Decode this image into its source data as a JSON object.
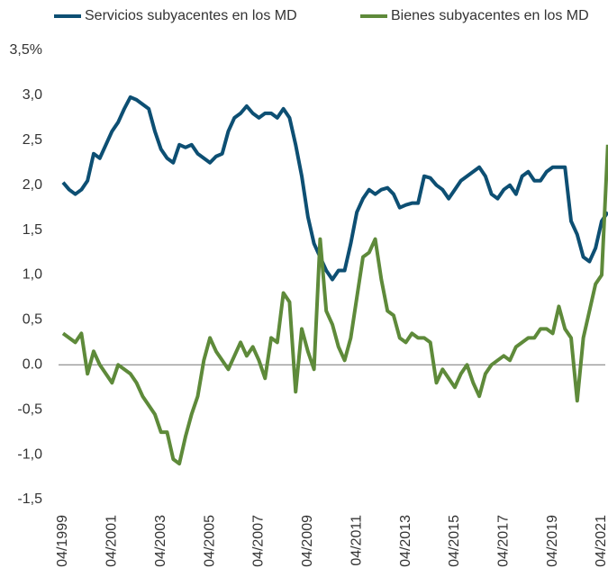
{
  "chart_data": {
    "type": "line",
    "x": [
      "04/1999",
      "07/1999",
      "10/1999",
      "01/2000",
      "04/2000",
      "07/2000",
      "10/2000",
      "01/2001",
      "04/2001",
      "07/2001",
      "10/2001",
      "01/2002",
      "04/2002",
      "07/2002",
      "10/2002",
      "01/2003",
      "04/2003",
      "07/2003",
      "10/2003",
      "01/2004",
      "04/2004",
      "07/2004",
      "10/2004",
      "01/2005",
      "04/2005",
      "07/2005",
      "10/2005",
      "01/2006",
      "04/2006",
      "07/2006",
      "10/2006",
      "01/2007",
      "04/2007",
      "07/2007",
      "10/2007",
      "01/2008",
      "04/2008",
      "07/2008",
      "10/2008",
      "01/2009",
      "04/2009",
      "07/2009",
      "10/2009",
      "01/2010",
      "04/2010",
      "07/2010",
      "10/2010",
      "01/2011",
      "04/2011",
      "07/2011",
      "10/2011",
      "01/2012",
      "04/2012",
      "07/2012",
      "10/2012",
      "01/2013",
      "04/2013",
      "07/2013",
      "10/2013",
      "01/2014",
      "04/2014",
      "07/2014",
      "10/2014",
      "01/2015",
      "04/2015",
      "07/2015",
      "10/2015",
      "01/2016",
      "04/2016",
      "07/2016",
      "10/2016",
      "01/2017",
      "04/2017",
      "07/2017",
      "10/2017",
      "01/2018",
      "04/2018",
      "07/2018",
      "10/2018",
      "01/2019",
      "04/2019",
      "07/2019",
      "10/2019",
      "01/2020",
      "04/2020",
      "07/2020",
      "10/2020",
      "01/2021",
      "04/2021",
      "07/2021"
    ],
    "series": [
      {
        "name": "Servicios subyacentes en los MD",
        "color": "#0d4f73",
        "values": [
          2.03,
          1.95,
          1.9,
          1.95,
          2.05,
          2.35,
          2.3,
          2.45,
          2.6,
          2.7,
          2.85,
          2.98,
          2.95,
          2.9,
          2.85,
          2.6,
          2.4,
          2.3,
          2.25,
          2.45,
          2.42,
          2.45,
          2.35,
          2.3,
          2.25,
          2.32,
          2.35,
          2.6,
          2.75,
          2.8,
          2.88,
          2.8,
          2.75,
          2.8,
          2.8,
          2.75,
          2.85,
          2.75,
          2.45,
          2.1,
          1.65,
          1.35,
          1.2,
          1.05,
          0.95,
          1.05,
          1.05,
          1.35,
          1.7,
          1.85,
          1.95,
          1.9,
          1.95,
          1.97,
          1.9,
          1.75,
          1.78,
          1.8,
          1.8,
          2.1,
          2.08,
          2.0,
          1.95,
          1.85,
          1.95,
          2.05,
          2.1,
          2.15,
          2.2,
          2.1,
          1.9,
          1.85,
          1.95,
          2.0,
          1.9,
          2.1,
          2.15,
          2.05,
          2.05,
          2.15,
          2.2,
          2.2,
          2.2,
          1.6,
          1.45,
          1.2,
          1.15,
          1.3,
          1.6,
          1.7
        ]
      },
      {
        "name": "Bienes subyacentes en los MD",
        "color": "#5e8a3a",
        "values": [
          0.35,
          0.3,
          0.25,
          0.35,
          -0.1,
          0.15,
          0.0,
          -0.1,
          -0.2,
          0.0,
          -0.05,
          -0.1,
          -0.2,
          -0.35,
          -0.45,
          -0.55,
          -0.75,
          -0.75,
          -1.05,
          -1.1,
          -0.8,
          -0.55,
          -0.35,
          0.05,
          0.3,
          0.15,
          0.05,
          -0.05,
          0.1,
          0.25,
          0.1,
          0.2,
          0.05,
          -0.15,
          0.3,
          0.25,
          0.8,
          0.7,
          -0.3,
          0.4,
          0.15,
          -0.05,
          1.4,
          0.6,
          0.45,
          0.2,
          0.05,
          0.3,
          0.75,
          1.2,
          1.25,
          1.4,
          0.95,
          0.6,
          0.55,
          0.3,
          0.25,
          0.35,
          0.3,
          0.3,
          0.25,
          -0.2,
          -0.05,
          -0.15,
          -0.25,
          -0.1,
          0.0,
          -0.2,
          -0.35,
          -0.1,
          0.0,
          0.05,
          0.1,
          0.05,
          0.2,
          0.25,
          0.3,
          0.3,
          0.4,
          0.4,
          0.35,
          0.65,
          0.4,
          0.3,
          -0.4,
          0.3,
          0.6,
          0.9,
          1.0,
          2.45
        ]
      }
    ],
    "ylim": [
      -1.5,
      3.5
    ],
    "yticks": [
      {
        "value": -1.5,
        "label": "-1,5"
      },
      {
        "value": -1,
        "label": "-1,0"
      },
      {
        "value": -0.5,
        "label": "-0,5"
      },
      {
        "value": 0,
        "label": "0.0"
      },
      {
        "value": 0.5,
        "label": "0,5"
      },
      {
        "value": 1,
        "label": "1,0"
      },
      {
        "value": 1.5,
        "label": "1,5"
      },
      {
        "value": 2,
        "label": "2,0"
      },
      {
        "value": 2.5,
        "label": "2,5"
      },
      {
        "value": 3,
        "label": "3,0"
      },
      {
        "value": 3.5,
        "label": "3,5%"
      }
    ],
    "xticks": [
      "04/1999",
      "04/2001",
      "04/2003",
      "04/2005",
      "04/2007",
      "04/2009",
      "04/2011",
      "04/2013",
      "04/2015",
      "04/2017",
      "04/2019",
      "04/2021"
    ],
    "zero_line": true,
    "legend": "top"
  }
}
